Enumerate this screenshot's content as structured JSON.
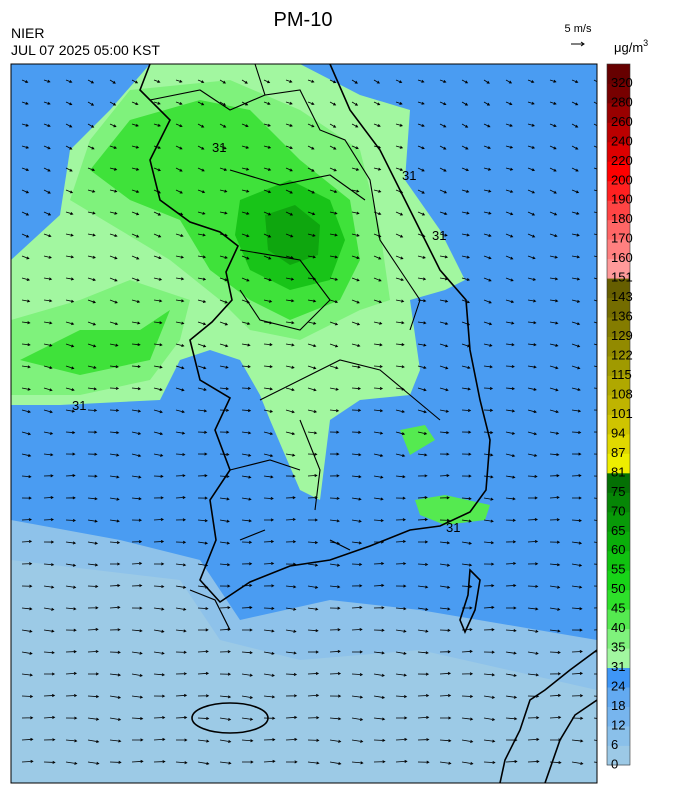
{
  "header": {
    "title": "PM-10",
    "agency": "NIER",
    "datetime": "JUL 07 2025 05:00 KST",
    "wind_scale": "5 m/s"
  },
  "colorbar": {
    "unit": "μg/m",
    "unit_exponent": "3",
    "labels": [
      0,
      6,
      12,
      18,
      24,
      31,
      35,
      40,
      45,
      50,
      55,
      60,
      65,
      70,
      75,
      81,
      87,
      94,
      101,
      108,
      115,
      122,
      129,
      136,
      143,
      151,
      160,
      170,
      180,
      190,
      200,
      220,
      240,
      260,
      280,
      320
    ],
    "colors": [
      "#9cc9e6",
      "#8ac0ea",
      "#77b5ee",
      "#63aaf1",
      "#3f96f6",
      "#a2f7a0",
      "#7ff27c",
      "#55ea50",
      "#2ee02a",
      "#18d418",
      "#10c210",
      "#0aae0a",
      "#089a08",
      "#068606",
      "#047004",
      "#eeee00",
      "#e0d800",
      "#cfc400",
      "#bfb400",
      "#b0a800",
      "#a09a00",
      "#928a00",
      "#847c00",
      "#746c00",
      "#665e00",
      "#ff9a9a",
      "#ff8080",
      "#ff6666",
      "#ff4444",
      "#ff2020",
      "#ff0000",
      "#dd0000",
      "#bb0000",
      "#990000",
      "#770000",
      "#660000"
    ]
  },
  "map": {
    "contour_labels": [
      "31",
      "31",
      "31",
      "31",
      "31"
    ]
  }
}
